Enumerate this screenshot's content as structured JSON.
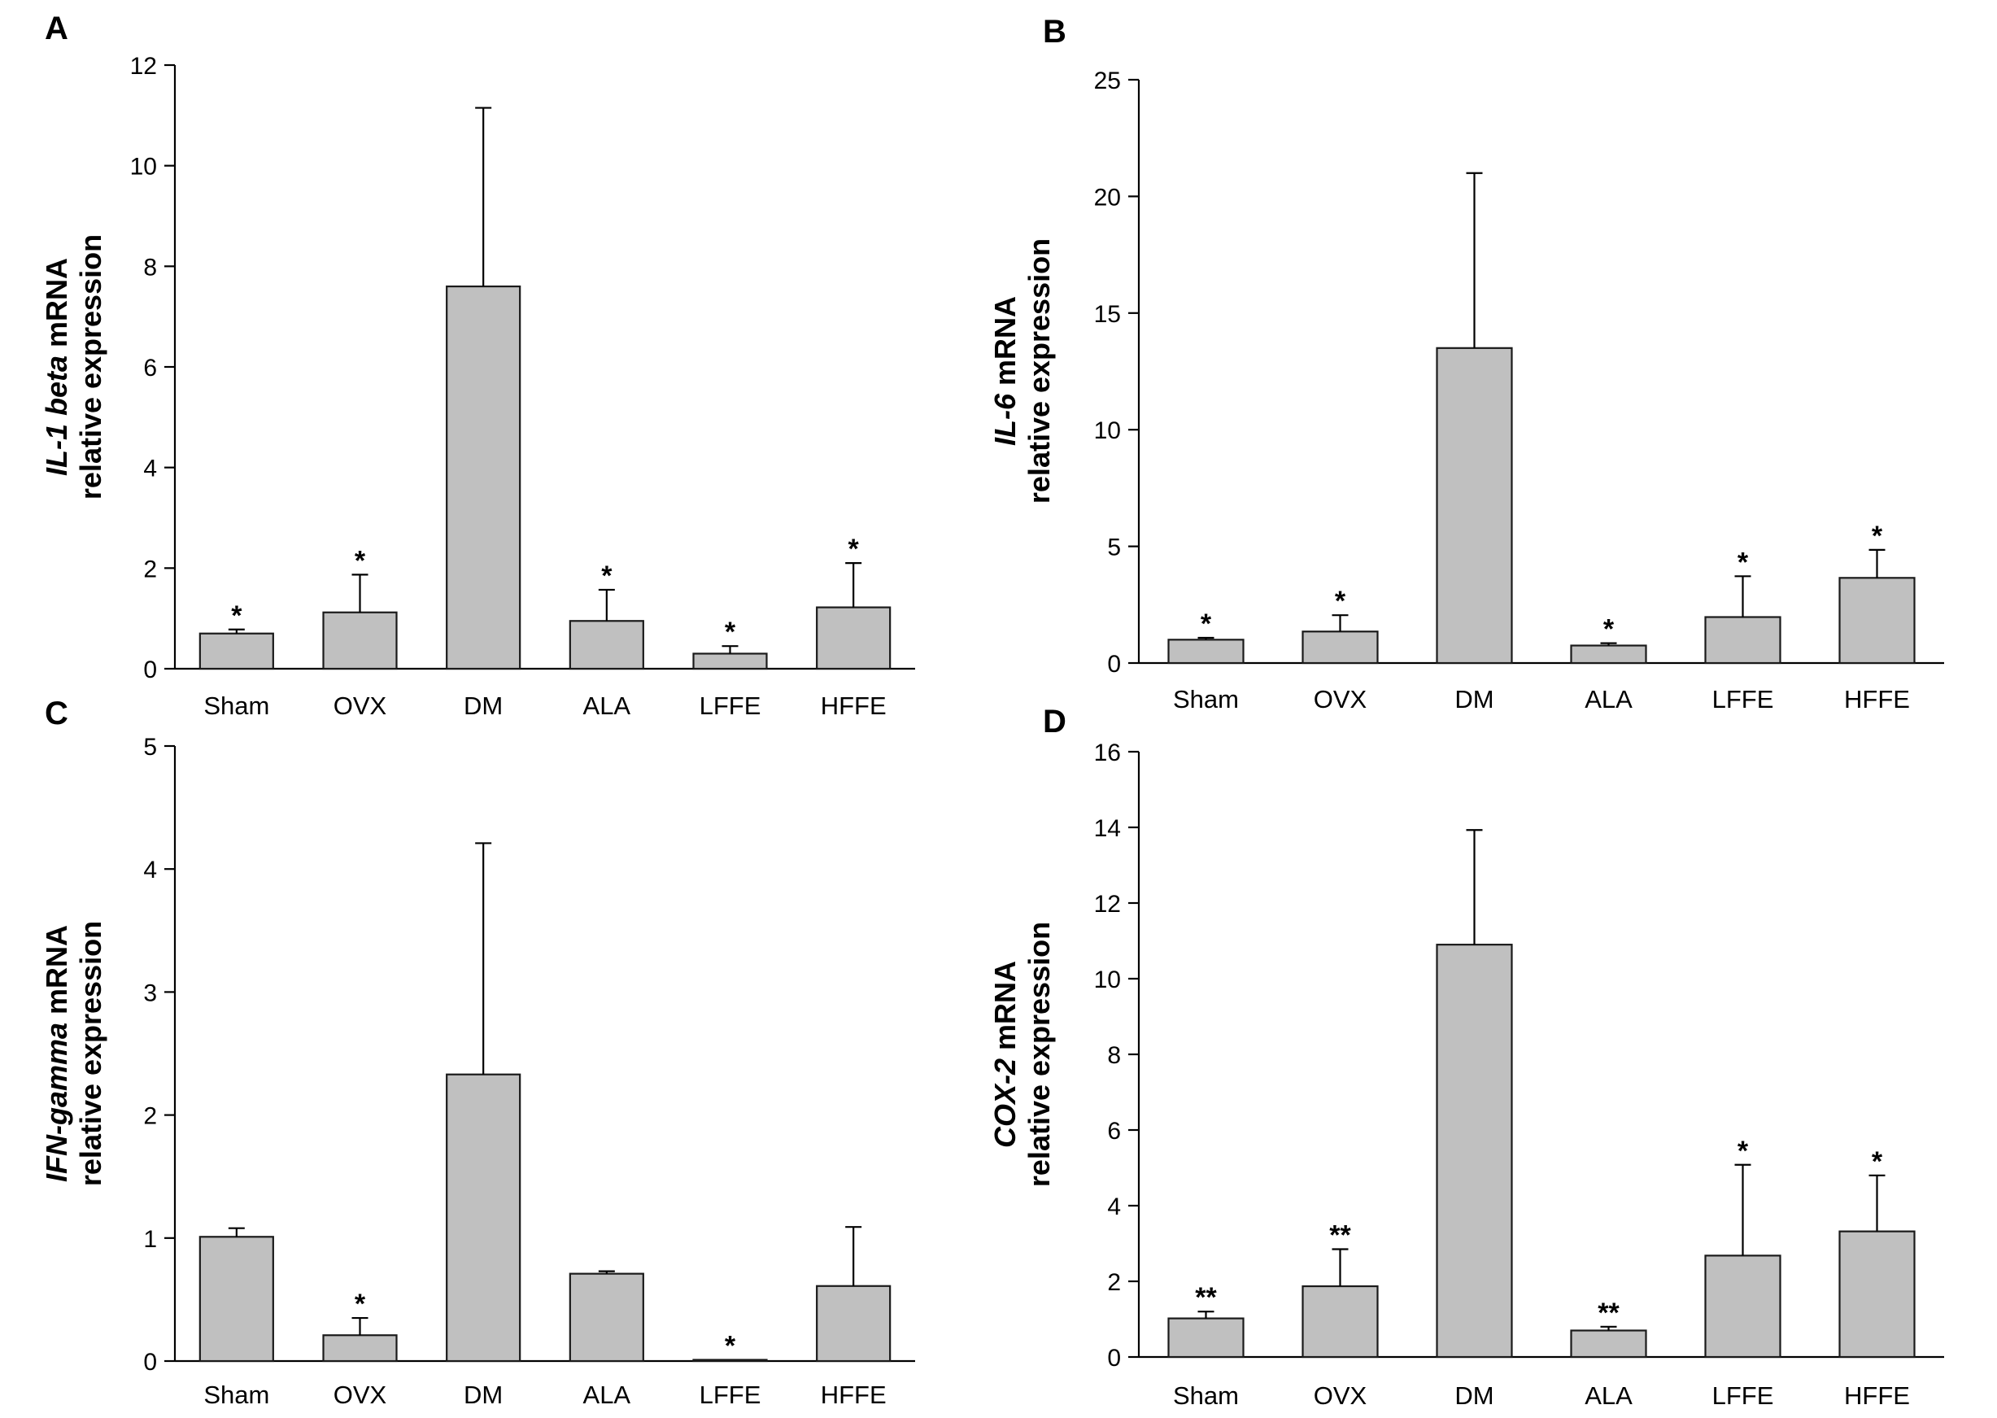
{
  "chart_data": [
    {
      "panel": "A",
      "type": "bar",
      "ylabel_gene": "IL-1 beta",
      "ylabel_suffix": " mRNA",
      "ylabel_line2": "relative expression",
      "categories": [
        "Sham",
        "OVX",
        "DM",
        "ALA",
        "LFFE",
        "HFFE"
      ],
      "values": [
        0.7,
        1.12,
        7.6,
        0.95,
        0.3,
        1.22
      ],
      "errors": [
        0.08,
        0.75,
        3.55,
        0.62,
        0.15,
        0.88
      ],
      "significance": [
        "*",
        "*",
        "",
        "*",
        "*",
        "*"
      ],
      "ylim": [
        0,
        12
      ],
      "yticks": [
        0,
        2,
        4,
        6,
        8,
        10,
        12
      ],
      "ytick_labels": [
        "0",
        "2",
        "4",
        "6",
        "8",
        "10",
        "12"
      ]
    },
    {
      "panel": "B",
      "type": "bar",
      "ylabel_gene": "IL-6",
      "ylabel_suffix": " mRNA",
      "ylabel_line2": "relative expression",
      "categories": [
        "Sham",
        "OVX",
        "DM",
        "ALA",
        "LFFE",
        "HFFE"
      ],
      "values": [
        1.0,
        1.35,
        13.5,
        0.75,
        1.97,
        3.65
      ],
      "errors": [
        0.08,
        0.7,
        7.5,
        0.1,
        1.75,
        1.2
      ],
      "significance": [
        "*",
        "*",
        "",
        "*",
        "*",
        "*"
      ],
      "ylim": [
        0,
        25
      ],
      "yticks": [
        0,
        5,
        10,
        15,
        20,
        25
      ],
      "ytick_labels": [
        "0",
        "5",
        "10",
        "15",
        "20",
        "25"
      ]
    },
    {
      "panel": "C",
      "type": "bar",
      "ylabel_gene": "IFN-gamma",
      "ylabel_suffix": " mRNA",
      "ylabel_line2": "relative expression",
      "categories": [
        "Sham",
        "OVX",
        "DM",
        "ALA",
        "LFFE",
        "HFFE"
      ],
      "values": [
        1.01,
        0.21,
        2.33,
        0.71,
        0.01,
        0.61
      ],
      "errors": [
        0.07,
        0.14,
        1.88,
        0.02,
        0.0,
        0.48
      ],
      "significance": [
        "",
        "*",
        "",
        "",
        "*",
        ""
      ],
      "ylim": [
        0,
        5
      ],
      "yticks": [
        0,
        1,
        2,
        3,
        4,
        5
      ],
      "ytick_labels": [
        "0",
        "1",
        "2",
        "3",
        "4",
        "5"
      ]
    },
    {
      "panel": "D",
      "type": "bar",
      "ylabel_gene": "COX-2",
      "ylabel_suffix": " mRNA",
      "ylabel_line2": "relative expression",
      "categories": [
        "Sham",
        "OVX",
        "DM",
        "ALA",
        "LFFE",
        "HFFE"
      ],
      "values": [
        1.02,
        1.87,
        10.9,
        0.7,
        2.68,
        3.32
      ],
      "errors": [
        0.18,
        0.98,
        3.03,
        0.1,
        2.4,
        1.48
      ],
      "significance": [
        "**",
        "**",
        "",
        "**",
        "*",
        "*"
      ],
      "ylim": [
        0,
        16
      ],
      "yticks": [
        0,
        2,
        4,
        6,
        8,
        10,
        12,
        14,
        16
      ],
      "ytick_labels": [
        "0",
        "2",
        "4",
        "6",
        "8",
        "10",
        "12",
        "14",
        "16"
      ]
    }
  ]
}
